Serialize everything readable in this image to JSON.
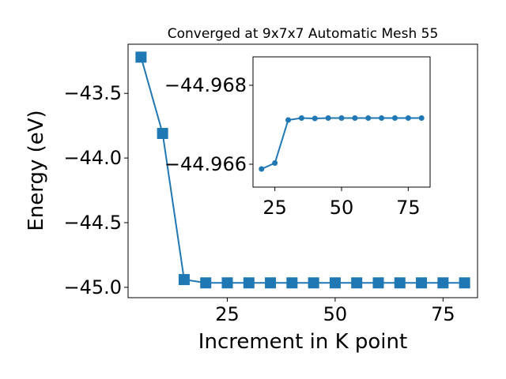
{
  "colors": {
    "series": "#1f77b4",
    "axes": "#000000",
    "background": "#ffffff"
  },
  "chart_data": [
    {
      "type": "line",
      "role": "main",
      "title": "Converged at 9x7x7 Automatic Mesh 55",
      "xlabel": "Increment in K point",
      "ylabel": "Energy (eV)",
      "xlim": [
        2,
        83
      ],
      "ylim": [
        -45.08,
        -43.12
      ],
      "xticks": [
        25,
        50,
        75
      ],
      "yticks": [
        -43.5,
        -44.0,
        -44.5,
        -45.0
      ],
      "xtick_labels": [
        "25",
        "50",
        "75"
      ],
      "ytick_labels": [
        "−43.5",
        "−44.0",
        "−44.5",
        "−45.0"
      ],
      "marker": "square",
      "grid": false,
      "x": [
        5,
        10,
        15,
        20,
        25,
        30,
        35,
        40,
        45,
        50,
        55,
        60,
        65,
        70,
        75,
        80
      ],
      "y": [
        -43.22,
        -43.81,
        -44.94,
        -44.9655,
        -44.9655,
        -44.9655,
        -44.9655,
        -44.9655,
        -44.9655,
        -44.9655,
        -44.9655,
        -44.9655,
        -44.9655,
        -44.9655,
        -44.9655,
        -44.9655
      ]
    },
    {
      "type": "line",
      "role": "inset",
      "title": "",
      "xlabel": "",
      "ylabel": "",
      "xlim": [
        16.8,
        83.2
      ],
      "ylim": [
        -44.96542,
        -44.96872
      ],
      "xticks": [
        25,
        50,
        75
      ],
      "yticks": [
        -44.968,
        -44.966
      ],
      "xtick_labels": [
        "25",
        "50",
        "75"
      ],
      "ytick_labels": [
        "−44.968",
        "−44.966"
      ],
      "marker": "circle",
      "grid": false,
      "x": [
        20,
        25,
        30,
        35,
        40,
        45,
        50,
        55,
        60,
        65,
        70,
        75,
        80
      ],
      "y": [
        -44.96588,
        -44.96603,
        -44.96712,
        -44.96717,
        -44.96716,
        -44.96717,
        -44.96717,
        -44.96717,
        -44.96717,
        -44.96717,
        -44.96717,
        -44.96717,
        -44.96717
      ]
    }
  ]
}
